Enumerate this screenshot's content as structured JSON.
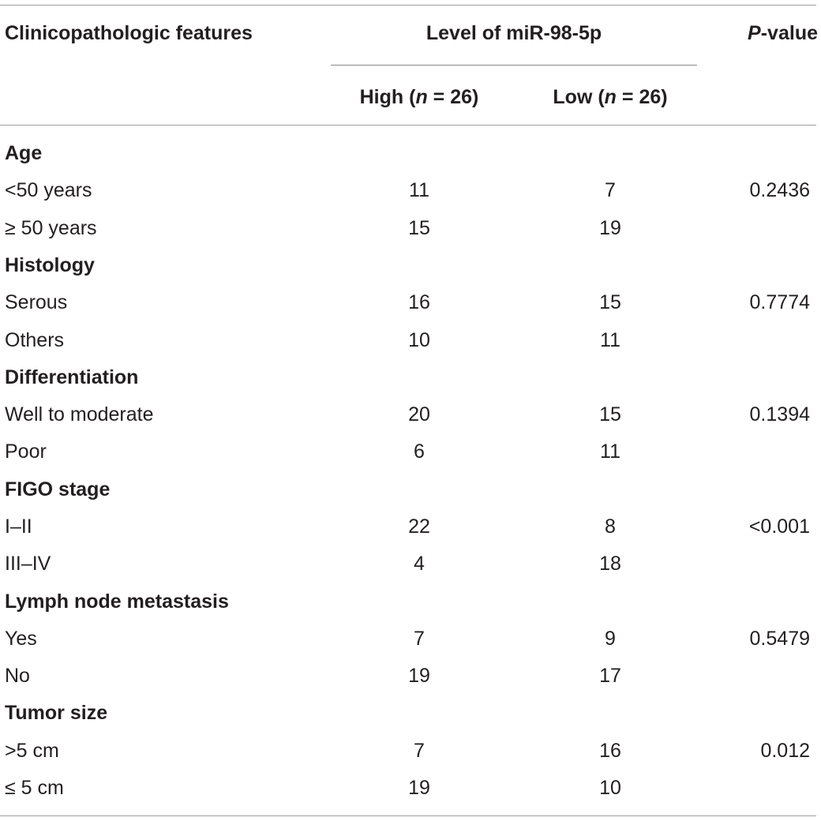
{
  "header": {
    "features": "Clinicopathologic features",
    "level": "Level of miR-98-5p",
    "p_value_italic": "P",
    "p_value_rest": "-value",
    "high_pre": "High (",
    "high_n": "n",
    "high_post": " = 26)",
    "low_pre": "Low (",
    "low_n": "n",
    "low_post": " = 26)"
  },
  "sections": [
    {
      "title": "Age",
      "rows": [
        {
          "label": "<50 years",
          "high": "11",
          "low": "7",
          "p": "0.2436"
        },
        {
          "label": "≥ 50 years",
          "high": "15",
          "low": "19",
          "p": ""
        }
      ]
    },
    {
      "title": "Histology",
      "rows": [
        {
          "label": "Serous",
          "high": "16",
          "low": "15",
          "p": "0.7774"
        },
        {
          "label": "Others",
          "high": "10",
          "low": "11",
          "p": ""
        }
      ]
    },
    {
      "title": "Differentiation",
      "rows": [
        {
          "label": "Well to moderate",
          "high": "20",
          "low": "15",
          "p": "0.1394"
        },
        {
          "label": "Poor",
          "high": "6",
          "low": "11",
          "p": ""
        }
      ]
    },
    {
      "title": "FIGO stage",
      "rows": [
        {
          "label": "I–II",
          "high": "22",
          "low": "8",
          "p": "<0.001"
        },
        {
          "label": "III–IV",
          "high": "4",
          "low": "18",
          "p": ""
        }
      ]
    },
    {
      "title": "Lymph node metastasis",
      "rows": [
        {
          "label": "Yes",
          "high": "7",
          "low": "9",
          "p": "0.5479"
        },
        {
          "label": "No",
          "high": "19",
          "low": "17",
          "p": ""
        }
      ]
    },
    {
      "title": "Tumor size",
      "rows": [
        {
          "label": ">5 cm",
          "high": "7",
          "low": "16",
          "p": "0.012"
        },
        {
          "label": "≤ 5 cm",
          "high": "19",
          "low": "10",
          "p": ""
        }
      ]
    }
  ]
}
